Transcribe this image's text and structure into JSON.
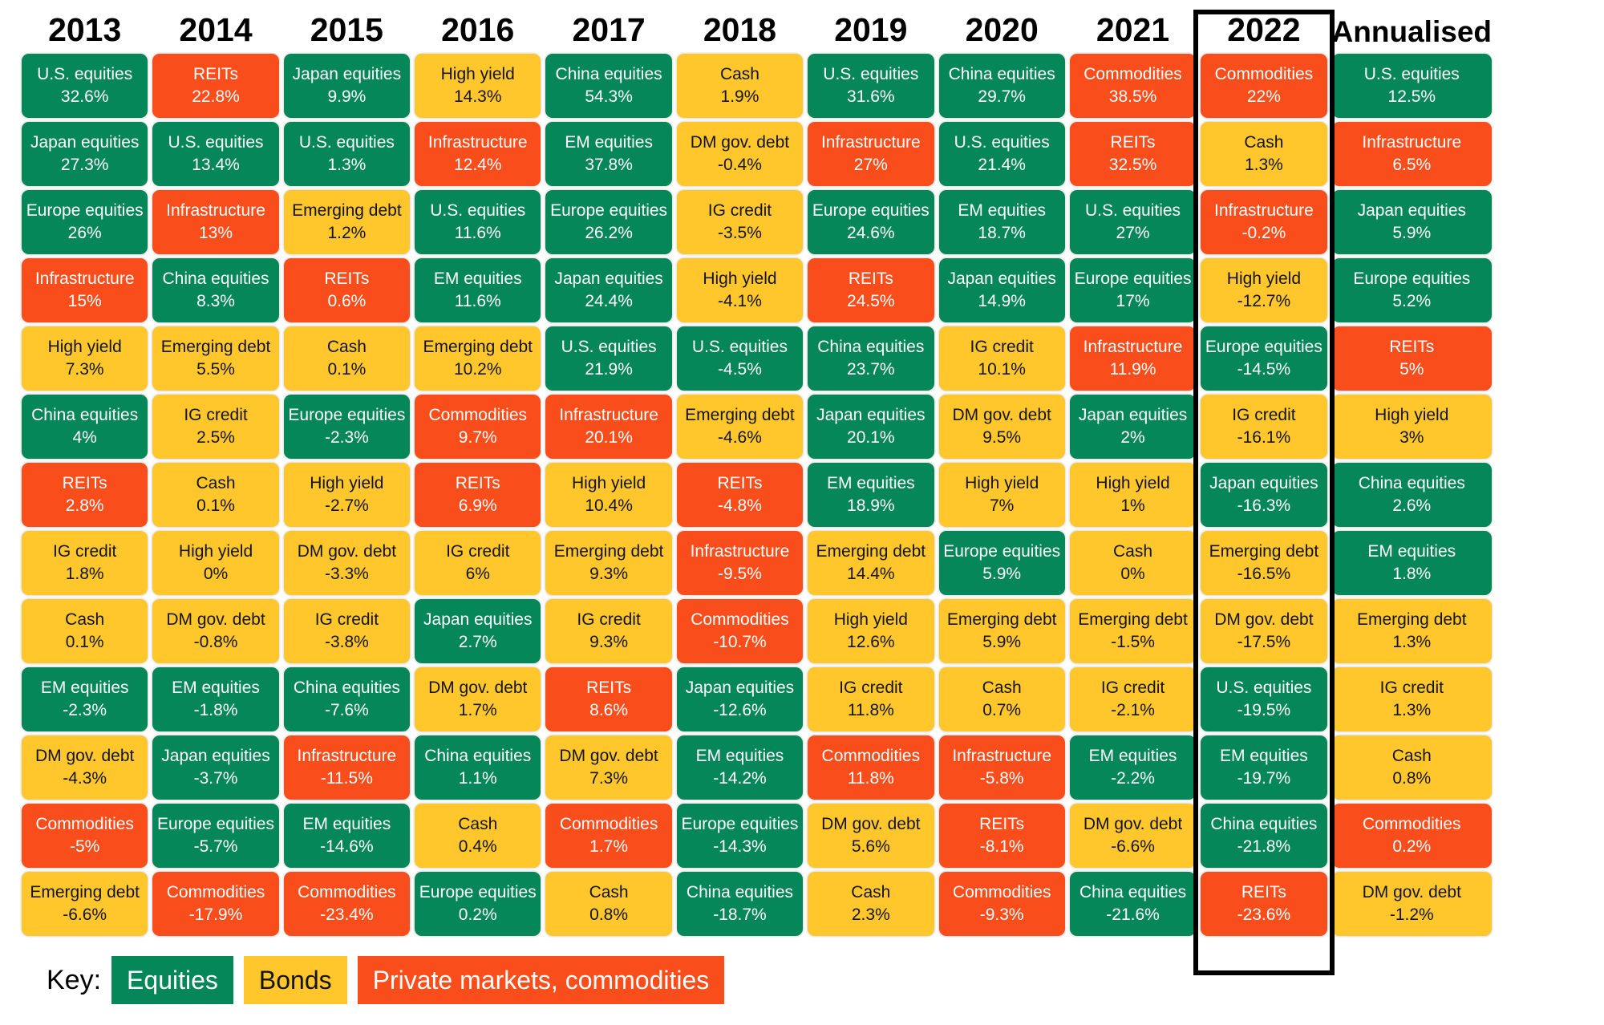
{
  "colors": {
    "equities": "#05875A",
    "bonds": "#FFC72C",
    "private": "#FA4D1C"
  },
  "key": {
    "label": "Key:",
    "items": [
      {
        "label": "Equities",
        "category": "equities"
      },
      {
        "label": "Bonds",
        "category": "bonds"
      },
      {
        "label": "Private markets, commodities",
        "category": "private"
      }
    ]
  },
  "highlight": {
    "year": "2022"
  },
  "chart_data": {
    "type": "table",
    "title": "",
    "legend": [
      "Equities",
      "Bonds",
      "Private markets, commodities"
    ],
    "description": "Asset class total returns ranked best to worst per calendar year; 2022 column highlighted with black box",
    "columns": [
      {
        "year": "2013",
        "cells": [
          {
            "label": "U.S. equities",
            "value": "32.6%",
            "category": "equities"
          },
          {
            "label": "Japan equities",
            "value": "27.3%",
            "category": "equities"
          },
          {
            "label": "Europe equities",
            "value": "26%",
            "category": "equities"
          },
          {
            "label": "Infrastructure",
            "value": "15%",
            "category": "private"
          },
          {
            "label": "High yield",
            "value": "7.3%",
            "category": "bonds"
          },
          {
            "label": "China equities",
            "value": "4%",
            "category": "equities"
          },
          {
            "label": "REITs",
            "value": "2.8%",
            "category": "private"
          },
          {
            "label": "IG credit",
            "value": "1.8%",
            "category": "bonds"
          },
          {
            "label": "Cash",
            "value": "0.1%",
            "category": "bonds"
          },
          {
            "label": "EM equities",
            "value": "-2.3%",
            "category": "equities"
          },
          {
            "label": "DM gov. debt",
            "value": "-4.3%",
            "category": "bonds"
          },
          {
            "label": "Commodities",
            "value": "-5%",
            "category": "private"
          },
          {
            "label": "Emerging debt",
            "value": "-6.6%",
            "category": "bonds"
          }
        ]
      },
      {
        "year": "2014",
        "cells": [
          {
            "label": "REITs",
            "value": "22.8%",
            "category": "private"
          },
          {
            "label": "U.S. equities",
            "value": "13.4%",
            "category": "equities"
          },
          {
            "label": "Infrastructure",
            "value": "13%",
            "category": "private"
          },
          {
            "label": "China equities",
            "value": "8.3%",
            "category": "equities"
          },
          {
            "label": "Emerging debt",
            "value": "5.5%",
            "category": "bonds"
          },
          {
            "label": "IG credit",
            "value": "2.5%",
            "category": "bonds"
          },
          {
            "label": "Cash",
            "value": "0.1%",
            "category": "bonds"
          },
          {
            "label": "High yield",
            "value": "0%",
            "category": "bonds"
          },
          {
            "label": "DM gov. debt",
            "value": "-0.8%",
            "category": "bonds"
          },
          {
            "label": "EM equities",
            "value": "-1.8%",
            "category": "equities"
          },
          {
            "label": "Japan equities",
            "value": "-3.7%",
            "category": "equities"
          },
          {
            "label": "Europe equities",
            "value": "-5.7%",
            "category": "equities"
          },
          {
            "label": "Commodities",
            "value": "-17.9%",
            "category": "private"
          }
        ]
      },
      {
        "year": "2015",
        "cells": [
          {
            "label": "Japan equities",
            "value": "9.9%",
            "category": "equities"
          },
          {
            "label": "U.S. equities",
            "value": "1.3%",
            "category": "equities"
          },
          {
            "label": "Emerging debt",
            "value": "1.2%",
            "category": "bonds"
          },
          {
            "label": "REITs",
            "value": "0.6%",
            "category": "private"
          },
          {
            "label": "Cash",
            "value": "0.1%",
            "category": "bonds"
          },
          {
            "label": "Europe equities",
            "value": "-2.3%",
            "category": "equities"
          },
          {
            "label": "High yield",
            "value": "-2.7%",
            "category": "bonds"
          },
          {
            "label": "DM gov. debt",
            "value": "-3.3%",
            "category": "bonds"
          },
          {
            "label": "IG credit",
            "value": "-3.8%",
            "category": "bonds"
          },
          {
            "label": "China equities",
            "value": "-7.6%",
            "category": "equities"
          },
          {
            "label": "Infrastructure",
            "value": "-11.5%",
            "category": "private"
          },
          {
            "label": "EM equities",
            "value": "-14.6%",
            "category": "equities"
          },
          {
            "label": "Commodities",
            "value": "-23.4%",
            "category": "private"
          }
        ]
      },
      {
        "year": "2016",
        "cells": [
          {
            "label": "High yield",
            "value": "14.3%",
            "category": "bonds"
          },
          {
            "label": "Infrastructure",
            "value": "12.4%",
            "category": "private"
          },
          {
            "label": "U.S. equities",
            "value": "11.6%",
            "category": "equities"
          },
          {
            "label": "EM equities",
            "value": "11.6%",
            "category": "equities"
          },
          {
            "label": "Emerging debt",
            "value": "10.2%",
            "category": "bonds"
          },
          {
            "label": "Commodities",
            "value": "9.7%",
            "category": "private"
          },
          {
            "label": "REITs",
            "value": "6.9%",
            "category": "private"
          },
          {
            "label": "IG credit",
            "value": "6%",
            "category": "bonds"
          },
          {
            "label": "Japan equities",
            "value": "2.7%",
            "category": "equities"
          },
          {
            "label": "DM gov. debt",
            "value": "1.7%",
            "category": "bonds"
          },
          {
            "label": "China equities",
            "value": "1.1%",
            "category": "equities"
          },
          {
            "label": "Cash",
            "value": "0.4%",
            "category": "bonds"
          },
          {
            "label": "Europe equities",
            "value": "0.2%",
            "category": "equities"
          }
        ]
      },
      {
        "year": "2017",
        "cells": [
          {
            "label": "China equities",
            "value": "54.3%",
            "category": "equities"
          },
          {
            "label": "EM equities",
            "value": "37.8%",
            "category": "equities"
          },
          {
            "label": "Europe equities",
            "value": "26.2%",
            "category": "equities"
          },
          {
            "label": "Japan equities",
            "value": "24.4%",
            "category": "equities"
          },
          {
            "label": "U.S. equities",
            "value": "21.9%",
            "category": "equities"
          },
          {
            "label": "Infrastructure",
            "value": "20.1%",
            "category": "private"
          },
          {
            "label": "High yield",
            "value": "10.4%",
            "category": "bonds"
          },
          {
            "label": "Emerging debt",
            "value": "9.3%",
            "category": "bonds"
          },
          {
            "label": "IG credit",
            "value": "9.3%",
            "category": "bonds"
          },
          {
            "label": "REITs",
            "value": "8.6%",
            "category": "private"
          },
          {
            "label": "DM gov. debt",
            "value": "7.3%",
            "category": "bonds"
          },
          {
            "label": "Commodities",
            "value": "1.7%",
            "category": "private"
          },
          {
            "label": "Cash",
            "value": "0.8%",
            "category": "bonds"
          }
        ]
      },
      {
        "year": "2018",
        "cells": [
          {
            "label": "Cash",
            "value": "1.9%",
            "category": "bonds"
          },
          {
            "label": "DM gov. debt",
            "value": "-0.4%",
            "category": "bonds"
          },
          {
            "label": "IG credit",
            "value": "-3.5%",
            "category": "bonds"
          },
          {
            "label": "High yield",
            "value": "-4.1%",
            "category": "bonds"
          },
          {
            "label": "U.S. equities",
            "value": "-4.5%",
            "category": "equities"
          },
          {
            "label": "Emerging debt",
            "value": "-4.6%",
            "category": "bonds"
          },
          {
            "label": "REITs",
            "value": "-4.8%",
            "category": "private"
          },
          {
            "label": "Infrastructure",
            "value": "-9.5%",
            "category": "private"
          },
          {
            "label": "Commodities",
            "value": "-10.7%",
            "category": "private"
          },
          {
            "label": "Japan equities",
            "value": "-12.6%",
            "category": "equities"
          },
          {
            "label": "EM equities",
            "value": "-14.2%",
            "category": "equities"
          },
          {
            "label": "Europe equities",
            "value": "-14.3%",
            "category": "equities"
          },
          {
            "label": "China equities",
            "value": "-18.7%",
            "category": "equities"
          }
        ]
      },
      {
        "year": "2019",
        "cells": [
          {
            "label": "U.S. equities",
            "value": "31.6%",
            "category": "equities"
          },
          {
            "label": "Infrastructure",
            "value": "27%",
            "category": "private"
          },
          {
            "label": "Europe equities",
            "value": "24.6%",
            "category": "equities"
          },
          {
            "label": "REITs",
            "value": "24.5%",
            "category": "private"
          },
          {
            "label": "China equities",
            "value": "23.7%",
            "category": "equities"
          },
          {
            "label": "Japan equities",
            "value": "20.1%",
            "category": "equities"
          },
          {
            "label": "EM equities",
            "value": "18.9%",
            "category": "equities"
          },
          {
            "label": "Emerging debt",
            "value": "14.4%",
            "category": "bonds"
          },
          {
            "label": "High yield",
            "value": "12.6%",
            "category": "bonds"
          },
          {
            "label": "IG credit",
            "value": "11.8%",
            "category": "bonds"
          },
          {
            "label": "Commodities",
            "value": "11.8%",
            "category": "private"
          },
          {
            "label": "DM gov. debt",
            "value": "5.6%",
            "category": "bonds"
          },
          {
            "label": "Cash",
            "value": "2.3%",
            "category": "bonds"
          }
        ]
      },
      {
        "year": "2020",
        "cells": [
          {
            "label": "China equities",
            "value": "29.7%",
            "category": "equities"
          },
          {
            "label": "U.S. equities",
            "value": "21.4%",
            "category": "equities"
          },
          {
            "label": "EM equities",
            "value": "18.7%",
            "category": "equities"
          },
          {
            "label": "Japan equities",
            "value": "14.9%",
            "category": "equities"
          },
          {
            "label": "IG credit",
            "value": "10.1%",
            "category": "bonds"
          },
          {
            "label": "DM gov. debt",
            "value": "9.5%",
            "category": "bonds"
          },
          {
            "label": "High yield",
            "value": "7%",
            "category": "bonds"
          },
          {
            "label": "Europe equities",
            "value": "5.9%",
            "category": "equities"
          },
          {
            "label": "Emerging debt",
            "value": "5.9%",
            "category": "bonds"
          },
          {
            "label": "Cash",
            "value": "0.7%",
            "category": "bonds"
          },
          {
            "label": "Infrastructure",
            "value": "-5.8%",
            "category": "private"
          },
          {
            "label": "REITs",
            "value": "-8.1%",
            "category": "private"
          },
          {
            "label": "Commodities",
            "value": "-9.3%",
            "category": "private"
          }
        ]
      },
      {
        "year": "2021",
        "cells": [
          {
            "label": "Commodities",
            "value": "38.5%",
            "category": "private"
          },
          {
            "label": "REITs",
            "value": "32.5%",
            "category": "private"
          },
          {
            "label": "U.S. equities",
            "value": "27%",
            "category": "equities"
          },
          {
            "label": "Europe equities",
            "value": "17%",
            "category": "equities"
          },
          {
            "label": "Infrastructure",
            "value": "11.9%",
            "category": "private"
          },
          {
            "label": "Japan equities",
            "value": "2%",
            "category": "equities"
          },
          {
            "label": "High yield",
            "value": "1%",
            "category": "bonds"
          },
          {
            "label": "Cash",
            "value": "0%",
            "category": "bonds"
          },
          {
            "label": "Emerging debt",
            "value": "-1.5%",
            "category": "bonds"
          },
          {
            "label": "IG credit",
            "value": "-2.1%",
            "category": "bonds"
          },
          {
            "label": "EM equities",
            "value": "-2.2%",
            "category": "equities"
          },
          {
            "label": "DM gov. debt",
            "value": "-6.6%",
            "category": "bonds"
          },
          {
            "label": "China equities",
            "value": "-21.6%",
            "category": "equities"
          }
        ]
      },
      {
        "year": "2022",
        "cells": [
          {
            "label": "Commodities",
            "value": "22%",
            "category": "private"
          },
          {
            "label": "Cash",
            "value": "1.3%",
            "category": "bonds"
          },
          {
            "label": "Infrastructure",
            "value": "-0.2%",
            "category": "private"
          },
          {
            "label": "High yield",
            "value": "-12.7%",
            "category": "bonds"
          },
          {
            "label": "Europe equities",
            "value": "-14.5%",
            "category": "equities"
          },
          {
            "label": "IG credit",
            "value": "-16.1%",
            "category": "bonds"
          },
          {
            "label": "Japan equities",
            "value": "-16.3%",
            "category": "equities"
          },
          {
            "label": "Emerging debt",
            "value": "-16.5%",
            "category": "bonds"
          },
          {
            "label": "DM gov. debt",
            "value": "-17.5%",
            "category": "bonds"
          },
          {
            "label": "U.S. equities",
            "value": "-19.5%",
            "category": "equities"
          },
          {
            "label": "EM equities",
            "value": "-19.7%",
            "category": "equities"
          },
          {
            "label": "China equities",
            "value": "-21.8%",
            "category": "equities"
          },
          {
            "label": "REITs",
            "value": "-23.6%",
            "category": "private"
          }
        ]
      },
      {
        "year": "Annualised",
        "cells": [
          {
            "label": "U.S. equities",
            "value": "12.5%",
            "category": "equities"
          },
          {
            "label": "Infrastructure",
            "value": "6.5%",
            "category": "private"
          },
          {
            "label": "Japan equities",
            "value": "5.9%",
            "category": "equities"
          },
          {
            "label": "Europe equities",
            "value": "5.2%",
            "category": "equities"
          },
          {
            "label": "REITs",
            "value": "5%",
            "category": "private"
          },
          {
            "label": "High yield",
            "value": "3%",
            "category": "bonds"
          },
          {
            "label": "China equities",
            "value": "2.6%",
            "category": "equities"
          },
          {
            "label": "EM equities",
            "value": "1.8%",
            "category": "equities"
          },
          {
            "label": "Emerging debt",
            "value": "1.3%",
            "category": "bonds"
          },
          {
            "label": "IG credit",
            "value": "1.3%",
            "category": "bonds"
          },
          {
            "label": "Cash",
            "value": "0.8%",
            "category": "bonds"
          },
          {
            "label": "Commodities",
            "value": "0.2%",
            "category": "private"
          },
          {
            "label": "DM gov. debt",
            "value": "-1.2%",
            "category": "bonds"
          }
        ]
      }
    ]
  }
}
